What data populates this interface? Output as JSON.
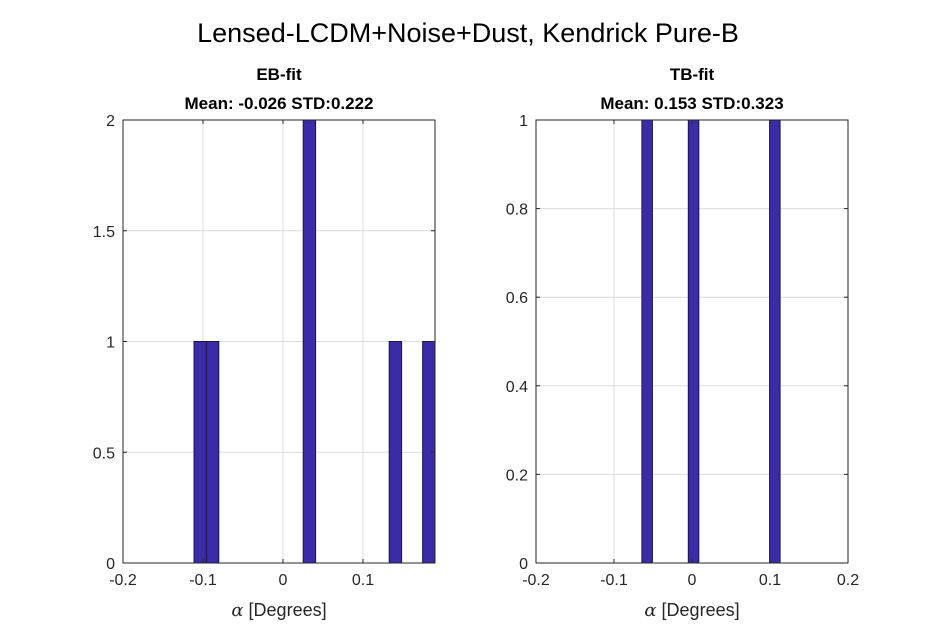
{
  "figure": {
    "suptitle": "Lensed-LCDM+Noise+Dust, Kendrick Pure-B",
    "colors": {
      "bar": "#3a2ca6",
      "bar_edge": "#1c1450"
    }
  },
  "chart_data": [
    {
      "type": "bar",
      "title_line1": "EB-fit",
      "title_line2": "Mean: -0.026 STD:0.222",
      "xlabel_symbol": "α",
      "xlabel_text": " [Degrees]",
      "ylabel": "",
      "xlim": [
        -0.2,
        0.19
      ],
      "ylim": [
        0,
        2
      ],
      "xticks": [
        -0.2,
        -0.1,
        0,
        0.1
      ],
      "xtick_labels": [
        "-0.2",
        "-0.1",
        "0",
        "0.1"
      ],
      "yticks": [
        0,
        0.5,
        1,
        1.5,
        2
      ],
      "ytick_labels": [
        "0",
        "0.5",
        "1",
        "1.5",
        "2"
      ],
      "grid": true,
      "bin_width": 0.0155,
      "bins": [
        {
          "center": -0.1035,
          "count": 1
        },
        {
          "center": -0.088,
          "count": 1
        },
        {
          "center": 0.033,
          "count": 2
        },
        {
          "center": 0.1405,
          "count": 1
        },
        {
          "center": 0.1823,
          "count": 1
        }
      ]
    },
    {
      "type": "bar",
      "title_line1": "TB-fit",
      "title_line2": "Mean: 0.153 STD:0.323",
      "xlabel_symbol": "α",
      "xlabel_text": " [Degrees]",
      "ylabel": "",
      "xlim": [
        -0.2,
        0.2
      ],
      "ylim": [
        0,
        1
      ],
      "xticks": [
        -0.2,
        -0.1,
        0,
        0.1,
        0.2
      ],
      "xtick_labels": [
        "-0.2",
        "-0.1",
        "0",
        "0.1",
        "0.2"
      ],
      "yticks": [
        0,
        0.2,
        0.4,
        0.6,
        0.8,
        1
      ],
      "ytick_labels": [
        "0",
        "0.2",
        "0.4",
        "0.6",
        "0.8",
        "1"
      ],
      "grid": true,
      "bin_width": 0.0135,
      "bins": [
        {
          "center": -0.0575,
          "count": 1
        },
        {
          "center": 0.002,
          "count": 1
        },
        {
          "center": 0.1062,
          "count": 1
        }
      ]
    }
  ]
}
